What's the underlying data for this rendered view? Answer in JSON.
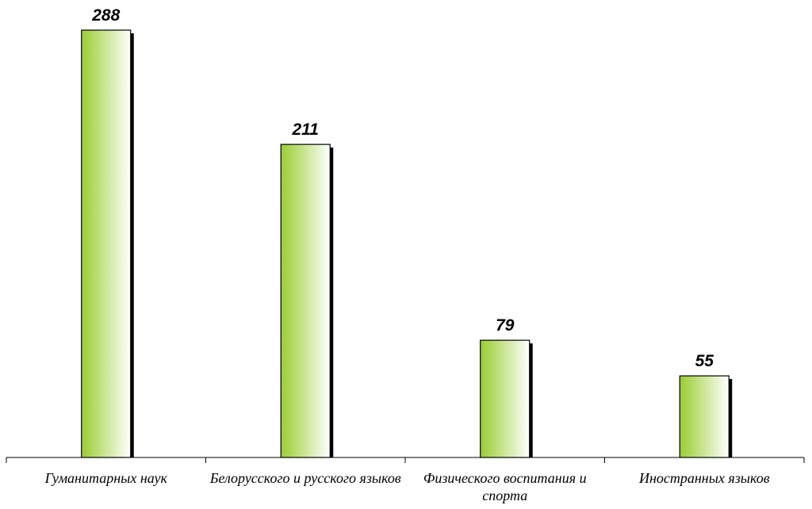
{
  "chart_data": {
    "type": "bar",
    "categories": [
      "Гуманитарных наук",
      "Белорусского и русского языков",
      "Физического воспитания и спорта",
      "Иностранных языков"
    ],
    "values": [
      288,
      211,
      79,
      55
    ],
    "color": "#9acd32"
  }
}
